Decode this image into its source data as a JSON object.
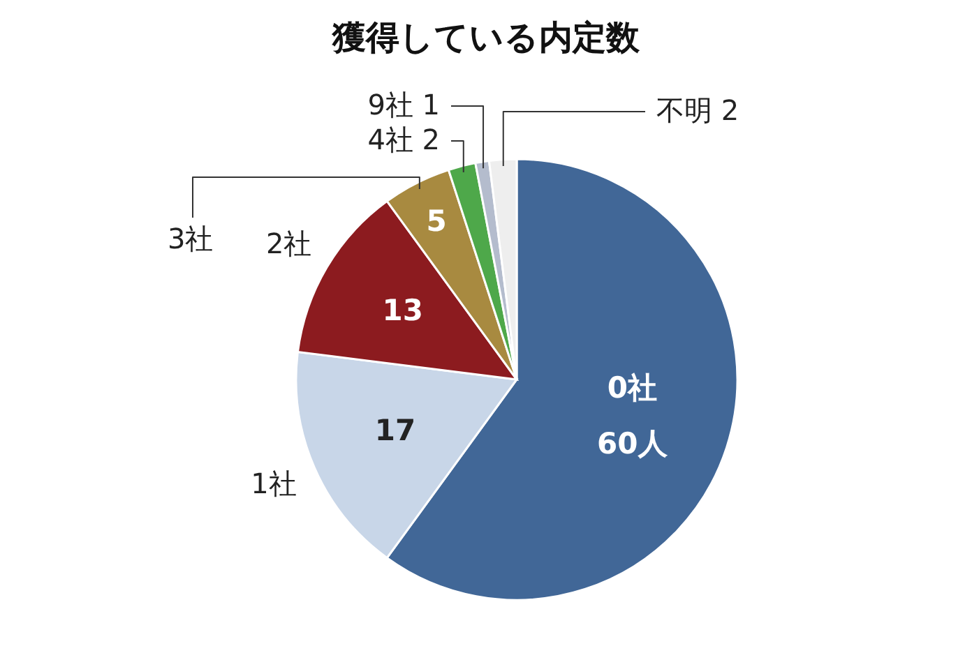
{
  "chart_data": {
    "type": "pie",
    "title": "獲得している内定数",
    "categories": [
      "0社",
      "1社",
      "2社",
      "3社",
      "4社",
      "9社",
      "不明"
    ],
    "values": [
      60,
      17,
      13,
      5,
      2,
      1,
      2
    ],
    "colors": [
      "#416797",
      "#c8d6e8",
      "#8c1b1f",
      "#a88a40",
      "#4ea84a",
      "#b4bccd",
      "#eeeeee"
    ],
    "value_labels": [
      "60人",
      "17",
      "13",
      "5",
      "2",
      "1",
      "2"
    ]
  }
}
